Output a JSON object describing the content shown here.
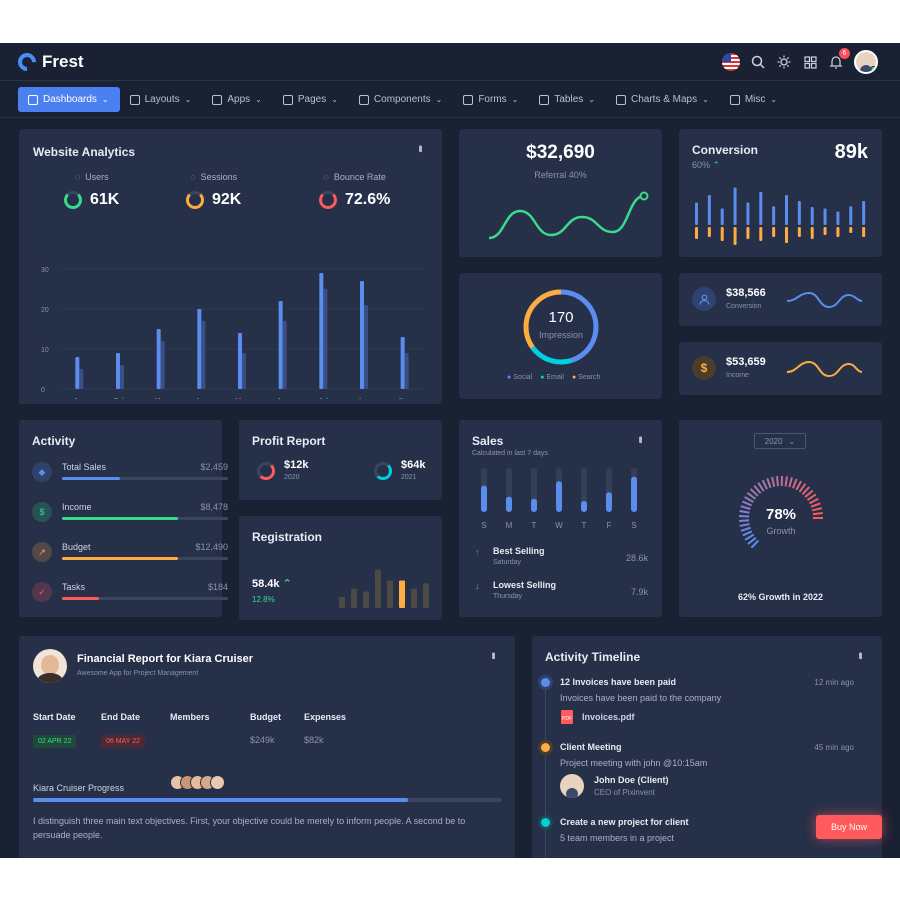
{
  "app": {
    "brand": "Frest"
  },
  "menu": [
    {
      "label": "Dashboards",
      "active": true
    },
    {
      "label": "Layouts"
    },
    {
      "label": "Apps"
    },
    {
      "label": "Pages"
    },
    {
      "label": "Components"
    },
    {
      "label": "Forms"
    },
    {
      "label": "Tables"
    },
    {
      "label": "Charts & Maps"
    },
    {
      "label": "Misc"
    }
  ],
  "notifications": {
    "count": "6"
  },
  "analytics": {
    "title": "Website Analytics",
    "stats": [
      {
        "label": "Users",
        "value": "61K",
        "color": "#39da8a"
      },
      {
        "label": "Sessions",
        "value": "92K",
        "color": "#fdac41"
      },
      {
        "label": "Bounce Rate",
        "value": "72.6%",
        "color": "#ff5b5c"
      }
    ],
    "chart_data": {
      "type": "bar",
      "categories": [
        "Jan",
        "Feb",
        "Mar",
        "Apr",
        "May",
        "Jun",
        "Jul",
        "Aug",
        "Sep"
      ],
      "series": [
        {
          "values": [
            8,
            9,
            15,
            20,
            14,
            22,
            29,
            27,
            13
          ]
        },
        {
          "values": [
            5,
            6,
            12,
            17,
            9,
            17,
            25,
            21,
            9
          ]
        }
      ],
      "yticks": [
        "0",
        "10",
        "20",
        "30"
      ],
      "ylim": [
        0,
        30
      ]
    }
  },
  "referral": {
    "value": "$32,690",
    "label": "Referral 40%",
    "chart_data": {
      "type": "line",
      "values": [
        10,
        55,
        15,
        45,
        20,
        80
      ]
    }
  },
  "conversion": {
    "title": "Conversion",
    "percent": "60%",
    "value": "89k",
    "chart_data": {
      "type": "bar",
      "series": [
        {
          "values": [
            30,
            40,
            22,
            50,
            30,
            44,
            25,
            40,
            32,
            24,
            22,
            18,
            25,
            32
          ]
        },
        {
          "values": [
            12,
            10,
            14,
            18,
            12,
            14,
            10,
            16,
            10,
            12,
            8,
            10,
            6,
            10
          ]
        }
      ]
    }
  },
  "impression": {
    "value": "170",
    "label": "Impression",
    "legend": [
      "Social",
      "Email",
      "Search"
    ],
    "chart_data": {
      "type": "pie",
      "values": [
        45,
        20,
        35
      ]
    }
  },
  "mini_stats": [
    {
      "value": "$38,566",
      "label": "Conversion",
      "color": "#5a8dee"
    },
    {
      "value": "$53,659",
      "label": "Income",
      "color": "#fdac41"
    }
  ],
  "activity": {
    "title": "Activity",
    "items": [
      {
        "label": "Total Sales",
        "value": "$2,459",
        "color": "#5a8dee",
        "fill": 0.35
      },
      {
        "label": "Income",
        "value": "$8,478",
        "color": "#39da8a",
        "fill": 0.7
      },
      {
        "label": "Budget",
        "value": "$12,490",
        "color": "#fdac41",
        "fill": 0.7
      },
      {
        "label": "Tasks",
        "value": "$184",
        "color": "#ff5b5c",
        "fill": 0.22
      }
    ]
  },
  "profit": {
    "title": "Profit Report",
    "items": [
      {
        "value": "$12k",
        "year": "2020"
      },
      {
        "value": "$64k",
        "year": "2021"
      }
    ]
  },
  "registration": {
    "title": "Registration",
    "value": "58.4k",
    "growth": "12.8%",
    "chart_data": {
      "type": "bar",
      "values": [
        20,
        35,
        30,
        70,
        50,
        50,
        35,
        45
      ]
    }
  },
  "sales": {
    "title": "Sales",
    "subtitle": "Calculated in last 7 days",
    "days": [
      "S",
      "M",
      "T",
      "W",
      "T",
      "F",
      "S"
    ],
    "chart_data": {
      "type": "bar",
      "values": [
        60,
        35,
        30,
        70,
        25,
        45,
        80
      ]
    },
    "best": {
      "label": "Best Selling",
      "day": "Saturday",
      "value": "28.6k"
    },
    "lowest": {
      "label": "Lowest Selling",
      "day": "Thursday",
      "value": "7.9k"
    }
  },
  "growth": {
    "year": "2020",
    "value": "78%",
    "label": "Growth",
    "caption": "62% Growth in 2022"
  },
  "financial": {
    "title": "Financial Report for Kiara Cruiser",
    "subtitle": "Awesome App for Project Management",
    "headers": [
      "Start Date",
      "End Date",
      "Members",
      "Budget",
      "Expenses"
    ],
    "start": "02 APR 22",
    "end": "06 MAY 22",
    "budget": "$249k",
    "expenses": "$82k",
    "progress_label": "Kiara Cruiser Progress",
    "progress": 0.8,
    "body": "I distinguish three main text objectives. First, your objective could be merely to inform people. A second be to persuade people."
  },
  "timeline": {
    "title": "Activity Timeline",
    "items": [
      {
        "title": "12 Invoices have been paid",
        "time": "12 min ago",
        "desc": "Invoices have been paid to the company",
        "file": "Invoices.pdf",
        "color": "#5a8dee"
      },
      {
        "title": "Client Meeting",
        "time": "45 min ago",
        "desc": "Project meeting with john @10:15am",
        "person": "John Doe (Client)",
        "role": "CEO of Pixinvent",
        "color": "#fdac41"
      },
      {
        "title": "Create a new project for client",
        "desc": "5 team members in a project",
        "color": "#00cfdd"
      }
    ]
  },
  "buy_now": "Buy Now"
}
